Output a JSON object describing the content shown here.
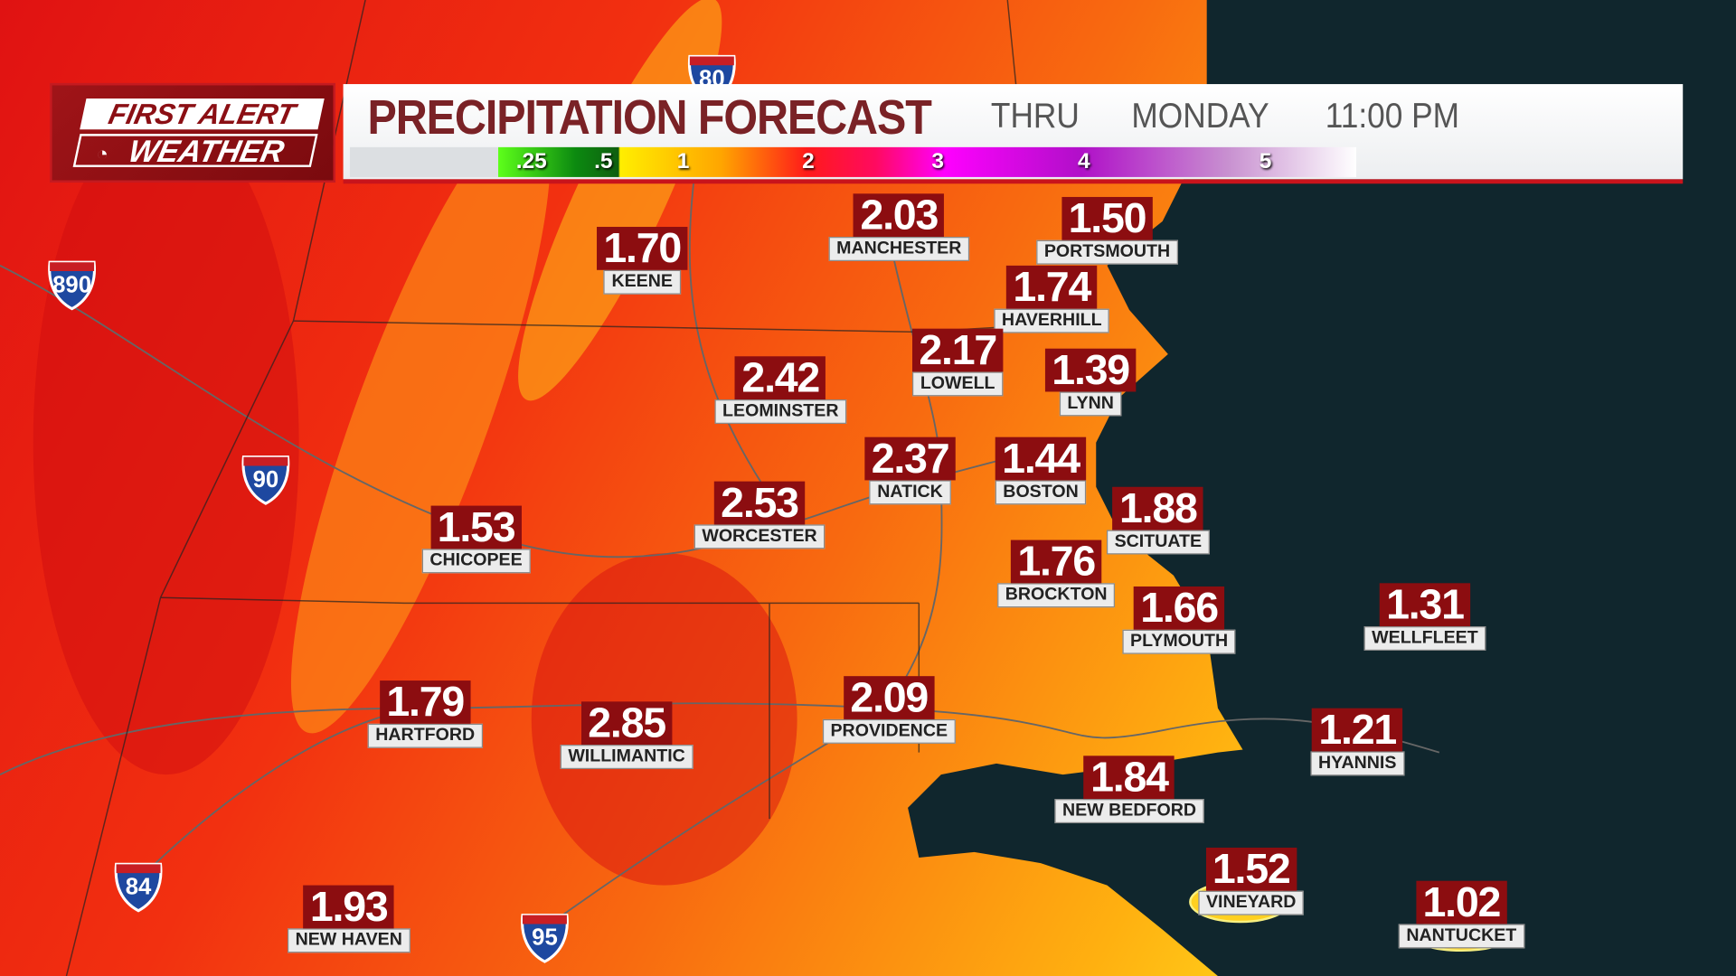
{
  "logo": {
    "line1": "FIRST ALERT",
    "line2": "WEATHER"
  },
  "header": {
    "title": "PRECIPITATION FORECAST",
    "thru": "THRU",
    "day": "MONDAY",
    "time": "11:00 PM"
  },
  "legend": {
    "labels": [
      ".25",
      ".5",
      "1",
      "2",
      "3",
      "4",
      "5"
    ],
    "colors": [
      "#5dff1a",
      "#0c8a10",
      "#ffee00",
      "#ff1a1a",
      "#ff00ff",
      "#b010c8",
      "#ffffff"
    ]
  },
  "cities": [
    {
      "name": "KEENE",
      "value": "1.70"
    },
    {
      "name": "MANCHESTER",
      "value": "2.03"
    },
    {
      "name": "PORTSMOUTH",
      "value": "1.50"
    },
    {
      "name": "HAVERHILL",
      "value": "1.74"
    },
    {
      "name": "LOWELL",
      "value": "2.17"
    },
    {
      "name": "LYNN",
      "value": "1.39"
    },
    {
      "name": "LEOMINSTER",
      "value": "2.42"
    },
    {
      "name": "NATICK",
      "value": "2.37"
    },
    {
      "name": "BOSTON",
      "value": "1.44"
    },
    {
      "name": "WORCESTER",
      "value": "2.53"
    },
    {
      "name": "CHICOPEE",
      "value": "1.53"
    },
    {
      "name": "SCITUATE",
      "value": "1.88"
    },
    {
      "name": "BROCKTON",
      "value": "1.76"
    },
    {
      "name": "PLYMOUTH",
      "value": "1.66"
    },
    {
      "name": "WELLFLEET",
      "value": "1.31"
    },
    {
      "name": "HARTFORD",
      "value": "1.79"
    },
    {
      "name": "WILLIMANTIC",
      "value": "2.85"
    },
    {
      "name": "PROVIDENCE",
      "value": "2.09"
    },
    {
      "name": "HYANNIS",
      "value": "1.21"
    },
    {
      "name": "NEW BEDFORD",
      "value": "1.84"
    },
    {
      "name": "VINEYARD",
      "value": "1.52"
    },
    {
      "name": "NANTUCKET",
      "value": "1.02"
    },
    {
      "name": "NEW HAVEN",
      "value": "1.93"
    }
  ],
  "interstates": [
    "890",
    "90",
    "84",
    "95",
    "80"
  ],
  "colors": {
    "ocean": "#10262d",
    "value_box": "#8c0d10",
    "title": "#7a2226",
    "accent": "#c8141c"
  }
}
